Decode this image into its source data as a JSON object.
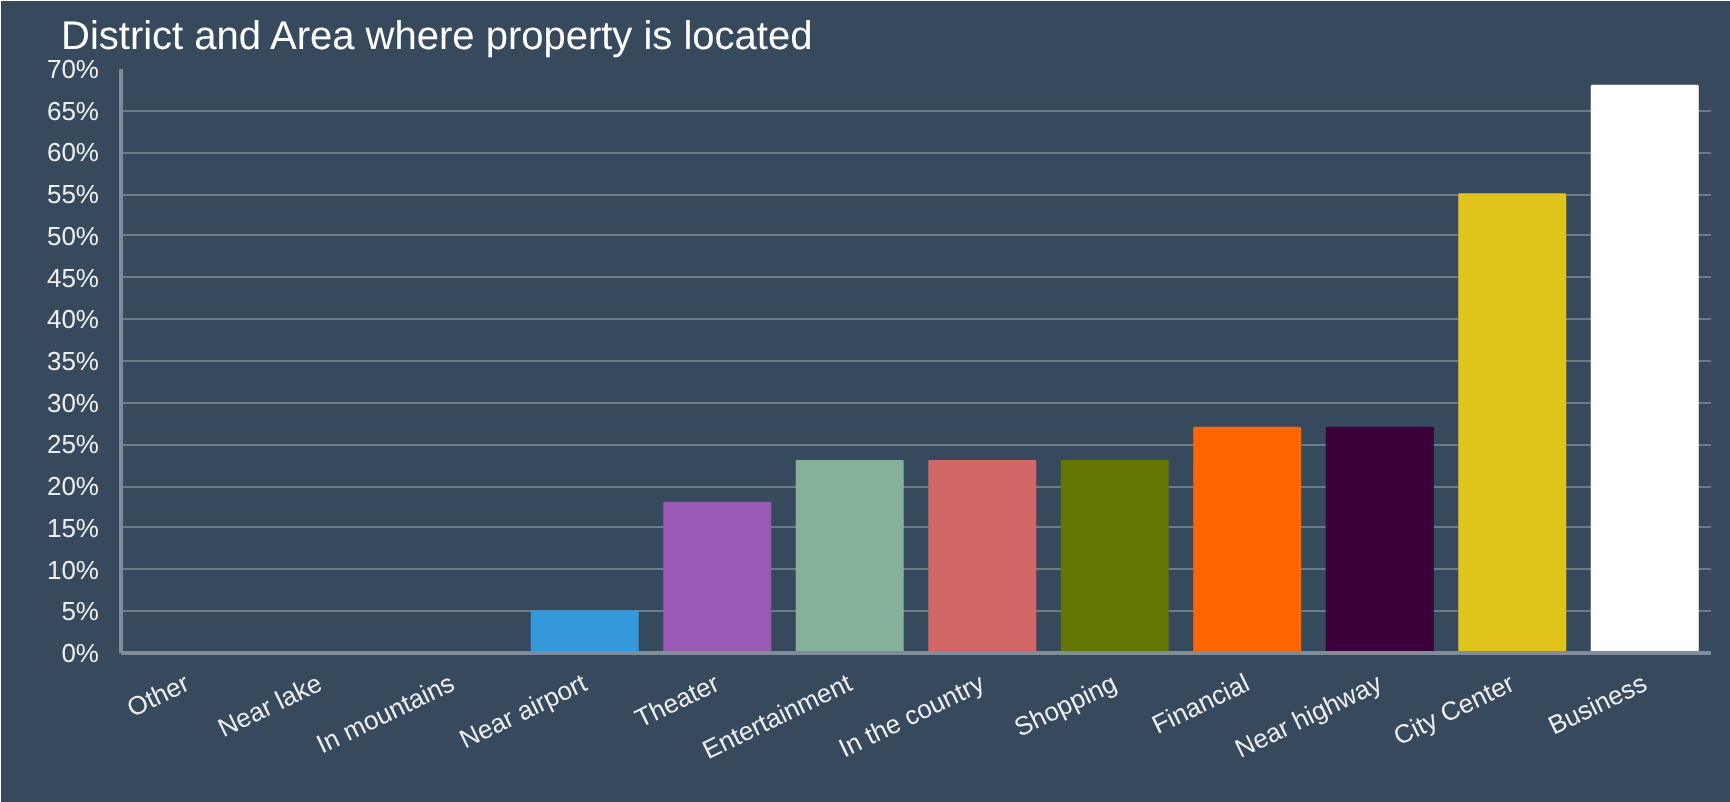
{
  "chart_data": {
    "type": "bar",
    "title": "District and Area where property is located",
    "categories": [
      "Other",
      "Near lake",
      "In mountains",
      "Near airport",
      "Theater",
      "Entertainment",
      "In the country",
      "Shopping",
      "Financial",
      "Near highway",
      "City Center",
      "Business"
    ],
    "values": [
      0,
      0,
      0,
      5,
      18,
      23,
      23,
      23,
      27,
      27,
      55,
      68
    ],
    "colors": [
      "#3498db",
      "#3498db",
      "#3498db",
      "#3498db",
      "#9b59b6",
      "#85b09a",
      "#d26767",
      "#667606",
      "#ff6600",
      "#3b003a",
      "#e0c41b",
      "#ffffff"
    ],
    "ylim": [
      0,
      70
    ],
    "yticks": [
      {
        "value": 0,
        "label": "0%"
      },
      {
        "value": 5,
        "label": "5%"
      },
      {
        "value": 10,
        "label": "10%"
      },
      {
        "value": 15,
        "label": "15%"
      },
      {
        "value": 20,
        "label": "20%"
      },
      {
        "value": 25,
        "label": "25%"
      },
      {
        "value": 30,
        "label": "30%"
      },
      {
        "value": 35,
        "label": "35%"
      },
      {
        "value": 40,
        "label": "40%"
      },
      {
        "value": 45,
        "label": "45%"
      },
      {
        "value": 50,
        "label": "50%"
      },
      {
        "value": 55,
        "label": "55%"
      },
      {
        "value": 60,
        "label": "60%"
      },
      {
        "value": 65,
        "label": "65%"
      },
      {
        "value": 70,
        "label": "70%"
      }
    ],
    "grid": "y"
  }
}
